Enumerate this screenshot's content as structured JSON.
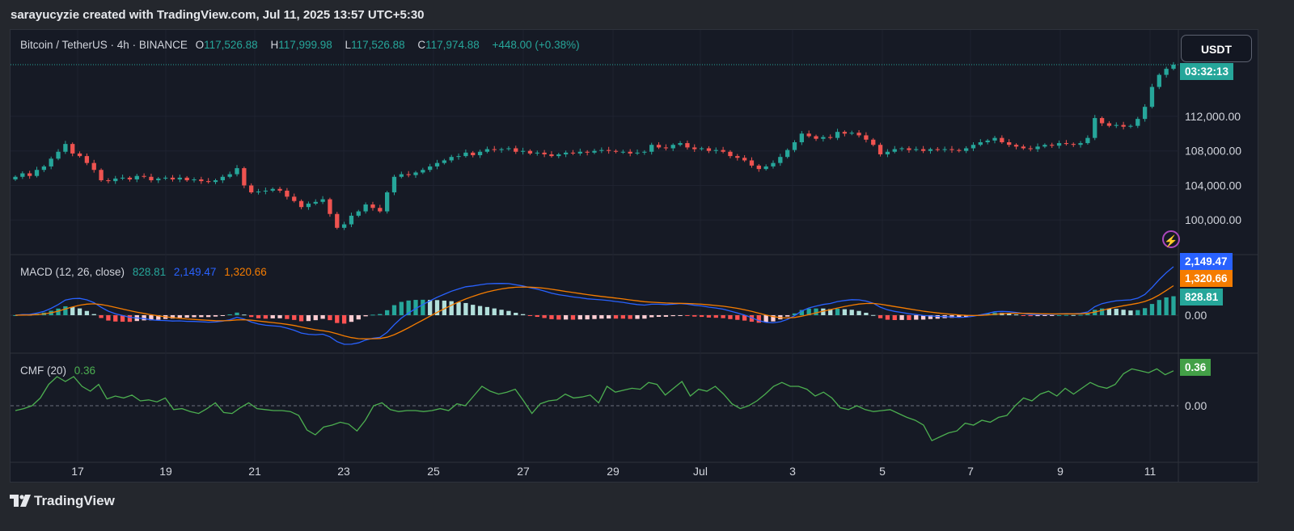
{
  "header": {
    "attribution": "sarayucyzie created with TradingView.com, Jul 11, 2025 13:57 UTC+5:30"
  },
  "price_legend": {
    "symbol": "Bitcoin / TetherUS · 4h · BINANCE",
    "o_label": "O",
    "o": "117,526.88",
    "h_label": "H",
    "h": "117,999.98",
    "l_label": "L",
    "l": "117,526.88",
    "c_label": "C",
    "c": "117,974.88",
    "change": "+448.00 (+0.38%)"
  },
  "currency_button": "USDT",
  "countdown": "03:32:13",
  "macd_legend": {
    "name": "MACD (12, 26, close)",
    "hist": "828.81",
    "macd": "2,149.47",
    "signal": "1,320.66"
  },
  "cmf_legend": {
    "name": "CMF (20)",
    "value": "0.36"
  },
  "footer": {
    "brand": "TradingView"
  },
  "colors": {
    "up": "#26a69a",
    "down": "#ef5350",
    "macd": "#2962ff",
    "signal": "#f57c00",
    "cmf": "#4caf50",
    "background": "#161a25"
  },
  "chart_data": [
    {
      "type": "candlestick",
      "title": "Bitcoin / TetherUS · 4h · BINANCE",
      "x_ticks": [
        "17",
        "19",
        "21",
        "23",
        "25",
        "27",
        "29",
        "Jul",
        "3",
        "5",
        "7",
        "9",
        "11"
      ],
      "y_ticks": [
        "100,000.00",
        "104,000.00",
        "108,000.00",
        "112,000.00"
      ],
      "ylim": [
        96000,
        122000
      ],
      "last_close": 117974.88,
      "close_series": [
        105000,
        105400,
        105100,
        105800,
        106200,
        107100,
        107900,
        108800,
        107700,
        107400,
        106600,
        105800,
        104600,
        104500,
        104800,
        104900,
        104700,
        105100,
        105000,
        104600,
        104800,
        104900,
        104700,
        104900,
        104600,
        104700,
        104500,
        104400,
        104600,
        105000,
        105300,
        106000,
        104000,
        103200,
        103300,
        103400,
        103600,
        103400,
        102700,
        102200,
        101500,
        101900,
        102100,
        102400,
        100700,
        99100,
        99500,
        100500,
        101000,
        101800,
        101400,
        101000,
        103200,
        105000,
        105300,
        105200,
        105500,
        105800,
        106200,
        106600,
        106900,
        107300,
        107400,
        107800,
        107500,
        107900,
        108200,
        108100,
        108200,
        108300,
        107900,
        108000,
        107700,
        107800,
        107600,
        107400,
        107600,
        107800,
        107700,
        107900,
        107800,
        108000,
        108100,
        108000,
        107900,
        107900,
        107700,
        107800,
        107900,
        108700,
        108400,
        108300,
        108700,
        108900,
        108400,
        108200,
        108300,
        108000,
        108100,
        107900,
        107400,
        107200,
        106900,
        106300,
        105900,
        106200,
        106600,
        107300,
        108100,
        109000,
        110000,
        109700,
        109400,
        109600,
        109500,
        110200,
        110000,
        110100,
        109800,
        109300,
        108700,
        107600,
        107900,
        108200,
        108300,
        108100,
        108200,
        108000,
        108200,
        108100,
        108200,
        108100,
        108000,
        108300,
        108700,
        109000,
        109200,
        109500,
        109000,
        108700,
        108500,
        108300,
        108200,
        108500,
        108700,
        108600,
        108900,
        108800,
        108700,
        108900,
        109500,
        111800,
        111200,
        110900,
        111000,
        110800,
        110900,
        111700,
        113100,
        115400,
        116800,
        117500,
        117974.88
      ]
    },
    {
      "type": "line",
      "title": "MACD (12, 26, close)",
      "y_ticks": [
        "0.00"
      ],
      "last_values": {
        "histogram": 828.81,
        "macd": 2149.47,
        "signal": 1320.66
      }
    },
    {
      "type": "line",
      "title": "CMF (20)",
      "y_ticks": [
        "0.00"
      ],
      "last_value": 0.36,
      "series": [
        {
          "values": [
            -0.05,
            -0.03,
            0.0,
            0.08,
            0.22,
            0.3,
            0.25,
            0.3,
            0.2,
            0.15,
            0.22,
            0.07,
            0.1,
            0.08,
            0.11,
            0.05,
            0.06,
            0.04,
            0.08,
            -0.04,
            -0.03,
            -0.06,
            -0.08,
            -0.03,
            0.03,
            -0.07,
            -0.08,
            -0.02,
            0.03,
            -0.03,
            -0.04,
            -0.05,
            -0.05,
            -0.06,
            -0.1,
            -0.25,
            -0.3,
            -0.22,
            -0.2,
            -0.17,
            -0.19,
            -0.26,
            -0.15,
            0.0,
            0.03,
            -0.04,
            -0.06,
            -0.05,
            -0.05,
            -0.06,
            -0.05,
            -0.03,
            -0.05,
            0.02,
            0.0,
            0.1,
            0.2,
            0.15,
            0.12,
            0.14,
            0.17,
            0.05,
            -0.08,
            0.02,
            0.05,
            0.06,
            0.12,
            0.08,
            0.09,
            0.11,
            0.03,
            0.2,
            0.14,
            0.16,
            0.18,
            0.17,
            0.24,
            0.22,
            0.11,
            0.18,
            0.25,
            0.1,
            0.17,
            0.15,
            0.2,
            0.12,
            0.02,
            -0.03,
            0.0,
            0.05,
            0.12,
            0.2,
            0.24,
            0.2,
            0.2,
            0.17,
            0.1,
            0.14,
            0.08,
            -0.02,
            -0.04,
            0.0,
            -0.04,
            -0.06,
            -0.05,
            -0.04,
            -0.08,
            -0.12,
            -0.15,
            -0.2,
            -0.36,
            -0.32,
            -0.28,
            -0.26,
            -0.18,
            -0.2,
            -0.15,
            -0.17,
            -0.12,
            -0.1,
            0.0,
            0.08,
            0.05,
            0.12,
            0.15,
            0.1,
            0.18,
            0.12,
            0.18,
            0.24,
            0.2,
            0.18,
            0.22,
            0.33,
            0.38,
            0.36,
            0.34,
            0.38,
            0.32,
            0.36
          ]
        }
      ]
    }
  ]
}
